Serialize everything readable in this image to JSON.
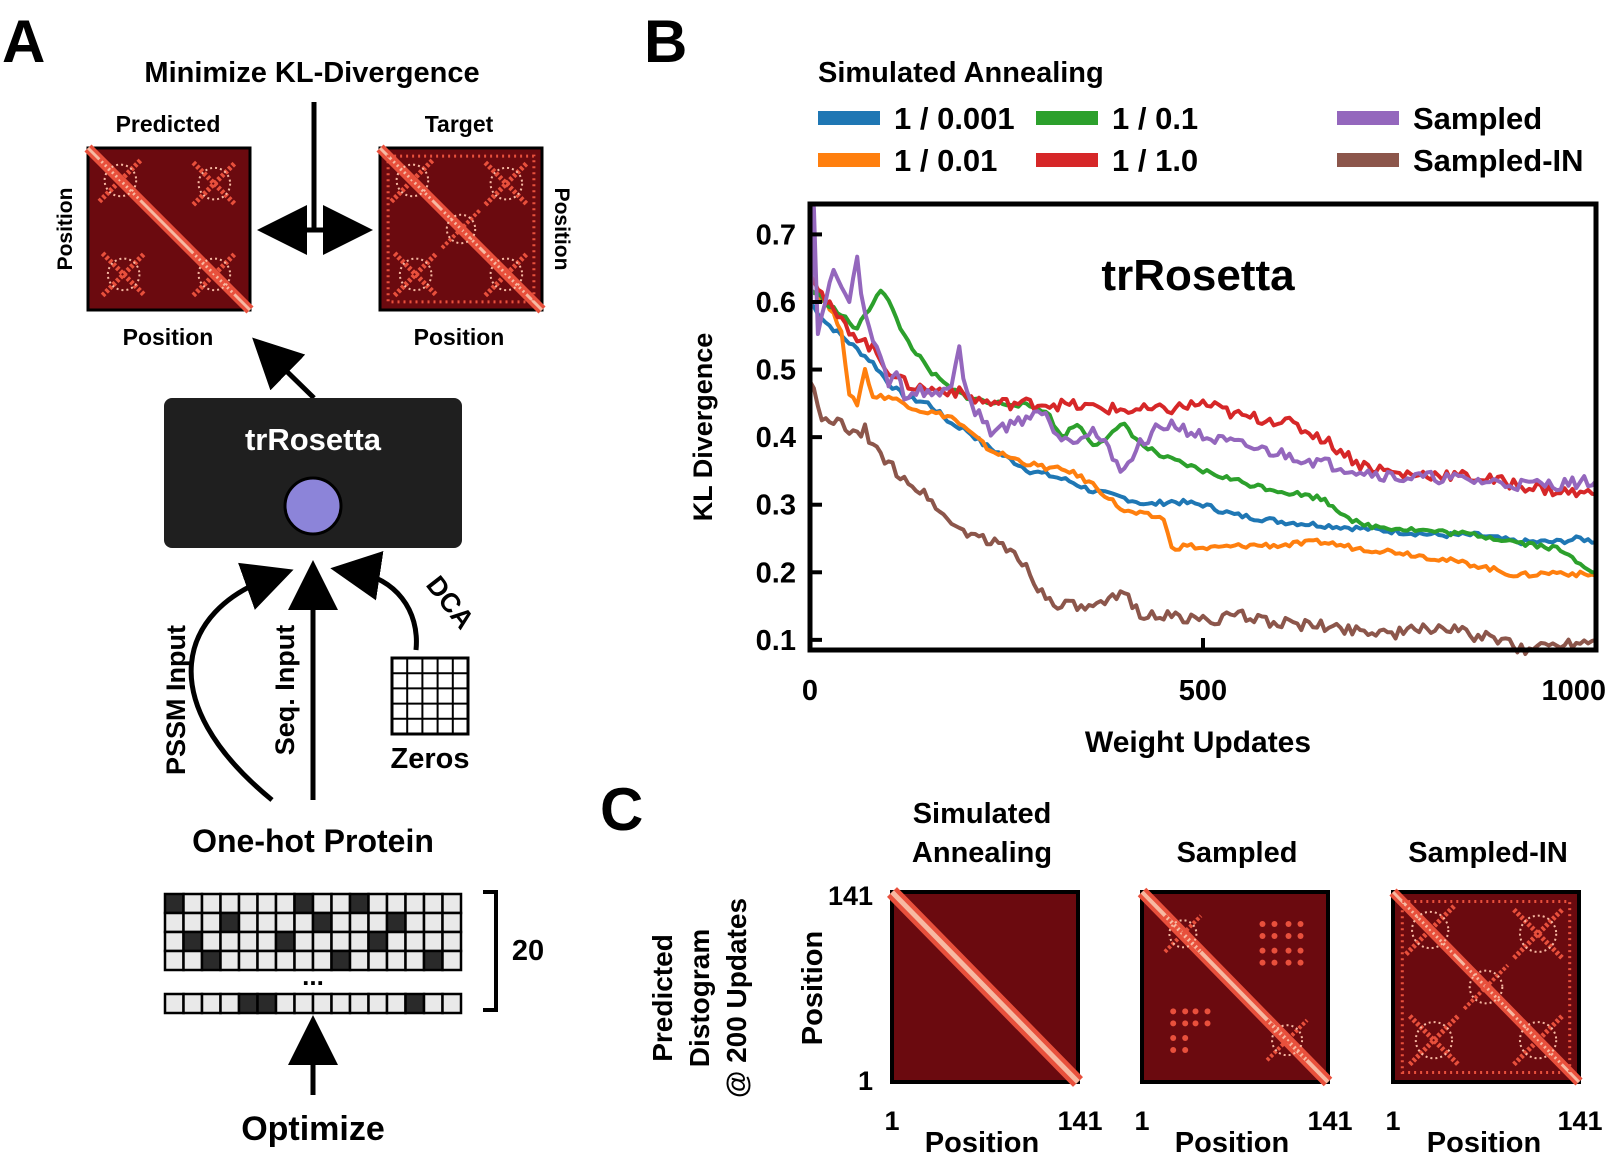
{
  "colors": {
    "map_bg": "#6b0a0f",
    "map_fg": "#e8503c",
    "map_light": "#f7b9a2",
    "box_fill": "#1f1f1f",
    "node_fill": "#8c84d9",
    "cell_dark": "#2a2a2a",
    "cell_light": "#e9e9e9"
  },
  "panel_a": {
    "letter": "A",
    "title": "Minimize KL-Divergence",
    "predicted_label": "Predicted",
    "target_label": "Target",
    "pos_left": "Position",
    "pos_right": "Position",
    "pos_bottom_pred": "Position",
    "pos_bottom_target": "Position",
    "model_label": "trRosetta",
    "pssm_label": "PSSM Input",
    "seq_label": "Seq. Input",
    "dca_label": "DCA",
    "zeros_label": "Zeros",
    "onehot_label": "One-hot Protein",
    "dots": "...",
    "count_label": "20",
    "optimize_label": "Optimize"
  },
  "panel_b": {
    "letter": "B"
  },
  "chart_data": {
    "type": "line",
    "title": "trRosetta",
    "legend_title": "Simulated Annealing",
    "xlabel": "Weight Updates",
    "ylabel": "KL Divergence",
    "xlim": [
      0,
      1000
    ],
    "ylim": [
      0.085,
      0.745
    ],
    "xticks": [
      "0",
      "500",
      "1000"
    ],
    "yticks": [
      "0.7",
      "0.6",
      "0.5",
      "0.4",
      "0.3",
      "0.2",
      "0.1"
    ],
    "ytick_values": [
      0.7,
      0.6,
      0.5,
      0.4,
      0.3,
      0.2,
      0.1
    ],
    "xtick_values": [
      0,
      500,
      1000
    ],
    "series": [
      {
        "name": "1 / 0.001",
        "color": "#1f77b4",
        "x": [
          0,
          20,
          40,
          60,
          80,
          100,
          120,
          150,
          180,
          200,
          220,
          250,
          280,
          300,
          330,
          360,
          400,
          430,
          460,
          500,
          540,
          600,
          650,
          700,
          750,
          800,
          850,
          900,
          950,
          980,
          1000
        ],
        "y": [
          0.6,
          0.57,
          0.55,
          0.53,
          0.51,
          0.48,
          0.46,
          0.45,
          0.42,
          0.41,
          0.39,
          0.37,
          0.35,
          0.345,
          0.335,
          0.32,
          0.31,
          0.3,
          0.305,
          0.3,
          0.285,
          0.275,
          0.27,
          0.265,
          0.26,
          0.255,
          0.255,
          0.245,
          0.245,
          0.25,
          0.245
        ]
      },
      {
        "name": "1 / 0.01",
        "color": "#ff7f0e",
        "x": [
          0,
          20,
          40,
          50,
          60,
          70,
          80,
          100,
          140,
          180,
          230,
          280,
          300,
          330,
          360,
          400,
          450,
          460,
          480,
          500,
          560,
          600,
          650,
          700,
          750,
          800,
          850,
          900,
          950,
          1000
        ],
        "y": [
          0.62,
          0.6,
          0.56,
          0.46,
          0.45,
          0.5,
          0.46,
          0.46,
          0.44,
          0.43,
          0.38,
          0.36,
          0.355,
          0.35,
          0.33,
          0.29,
          0.28,
          0.235,
          0.24,
          0.235,
          0.24,
          0.24,
          0.245,
          0.235,
          0.23,
          0.22,
          0.21,
          0.195,
          0.2,
          0.195
        ]
      },
      {
        "name": "1 / 0.1",
        "color": "#2ca02c",
        "x": [
          0,
          20,
          40,
          60,
          80,
          90,
          100,
          120,
          150,
          180,
          200,
          230,
          260,
          300,
          320,
          340,
          360,
          380,
          400,
          420,
          450,
          500,
          560,
          600,
          650,
          700,
          750,
          800,
          850,
          900,
          950,
          1000
        ],
        "y": [
          0.62,
          0.6,
          0.58,
          0.56,
          0.6,
          0.62,
          0.6,
          0.55,
          0.5,
          0.47,
          0.46,
          0.45,
          0.45,
          0.44,
          0.4,
          0.42,
          0.39,
          0.4,
          0.42,
          0.39,
          0.37,
          0.35,
          0.33,
          0.32,
          0.31,
          0.27,
          0.265,
          0.26,
          0.255,
          0.245,
          0.235,
          0.2
        ]
      },
      {
        "name": "1 / 1.0",
        "color": "#d62728",
        "x": [
          0,
          20,
          40,
          60,
          80,
          100,
          120,
          150,
          180,
          200,
          230,
          260,
          300,
          350,
          400,
          450,
          500,
          550,
          600,
          650,
          700,
          750,
          800,
          850,
          900,
          950,
          1000
        ],
        "y": [
          0.65,
          0.6,
          0.57,
          0.55,
          0.53,
          0.5,
          0.48,
          0.47,
          0.47,
          0.46,
          0.45,
          0.45,
          0.45,
          0.445,
          0.44,
          0.44,
          0.45,
          0.43,
          0.425,
          0.4,
          0.36,
          0.345,
          0.345,
          0.34,
          0.33,
          0.32,
          0.315
        ]
      },
      {
        "name": "Sampled",
        "color": "#9467bd",
        "x": [
          0,
          5,
          10,
          20,
          30,
          40,
          50,
          60,
          70,
          80,
          90,
          100,
          110,
          120,
          140,
          160,
          180,
          190,
          200,
          210,
          230,
          260,
          290,
          300,
          320,
          340,
          360,
          380,
          400,
          420,
          440,
          460,
          500,
          540,
          580,
          620,
          660,
          700,
          750,
          800,
          850,
          900,
          950,
          1000
        ],
        "y": [
          0.56,
          0.74,
          0.55,
          0.6,
          0.65,
          0.62,
          0.6,
          0.66,
          0.58,
          0.54,
          0.52,
          0.48,
          0.5,
          0.46,
          0.47,
          0.46,
          0.48,
          0.53,
          0.46,
          0.44,
          0.41,
          0.42,
          0.44,
          0.43,
          0.4,
          0.4,
          0.41,
          0.38,
          0.35,
          0.39,
          0.41,
          0.42,
          0.4,
          0.39,
          0.38,
          0.37,
          0.36,
          0.35,
          0.34,
          0.34,
          0.335,
          0.33,
          0.33,
          0.335
        ]
      },
      {
        "name": "Sampled-IN",
        "color": "#8c564b",
        "x": [
          0,
          10,
          20,
          40,
          60,
          70,
          80,
          90,
          100,
          120,
          140,
          160,
          180,
          200,
          220,
          240,
          260,
          280,
          300,
          330,
          360,
          380,
          400,
          420,
          450,
          500,
          550,
          600,
          650,
          700,
          750,
          800,
          850,
          880,
          900,
          950,
          1000
        ],
        "y": [
          0.49,
          0.44,
          0.42,
          0.42,
          0.4,
          0.41,
          0.39,
          0.37,
          0.36,
          0.34,
          0.32,
          0.3,
          0.27,
          0.26,
          0.25,
          0.24,
          0.23,
          0.2,
          0.16,
          0.15,
          0.145,
          0.155,
          0.17,
          0.14,
          0.135,
          0.13,
          0.135,
          0.125,
          0.12,
          0.115,
          0.11,
          0.12,
          0.105,
          0.1,
          0.085,
          0.095,
          0.1
        ]
      }
    ]
  },
  "panel_c": {
    "letter": "C",
    "ylabel_line1": "Predicted",
    "ylabel_line2": "Distogram",
    "ylabel_line3": "@ 200 Updates",
    "map1_title_line1": "Simulated",
    "map1_title_line2": "Annealing",
    "map2_title": "Sampled",
    "map3_title": "Sampled-IN",
    "map_ylabel": "Position",
    "tick_141_y": "141",
    "tick_1_y": "1",
    "tick_1_x": "1",
    "tick_141_x": "141",
    "map_xlabel": "Position"
  }
}
